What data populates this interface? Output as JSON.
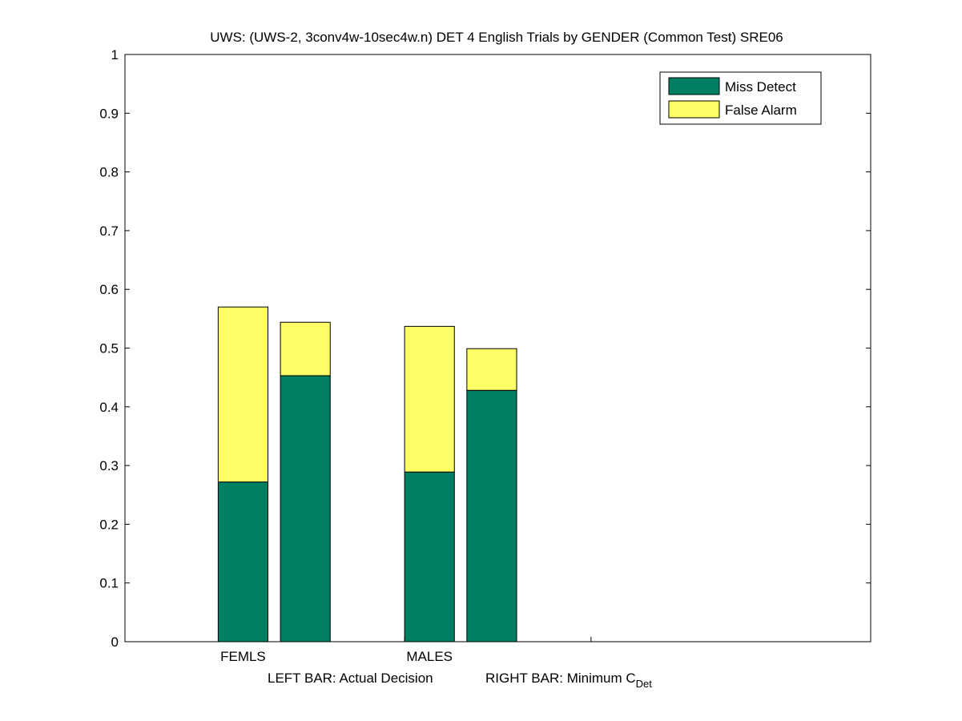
{
  "chart_data": {
    "type": "bar",
    "stacked": true,
    "title": "UWS: (UWS-2, 3conv4w-10sec4w.n) DET 4 English Trials by GENDER (Common Test) SRE06",
    "xlabel_left": "LEFT BAR: Actual Decision",
    "xlabel_right_main": "RIGHT BAR: Minimum C",
    "xlabel_right_sub": "Det",
    "ylim": [
      0,
      1
    ],
    "yticks": [
      "0",
      "0.1",
      "0.2",
      "0.3",
      "0.4",
      "0.5",
      "0.6",
      "0.7",
      "0.8",
      "0.9",
      "1"
    ],
    "categories": [
      "FEMLS",
      "MALES"
    ],
    "bar_roles": [
      "Actual Decision",
      "Minimum CDet"
    ],
    "series": [
      {
        "name": "Miss Detect",
        "color": "#007f63",
        "values": [
          [
            0.272,
            0.453
          ],
          [
            0.289,
            0.428
          ]
        ]
      },
      {
        "name": "False Alarm",
        "color": "#ffff66",
        "values": [
          [
            0.298,
            0.091
          ],
          [
            0.248,
            0.071
          ]
        ]
      }
    ],
    "legend_position": "top-right",
    "grid": false
  }
}
